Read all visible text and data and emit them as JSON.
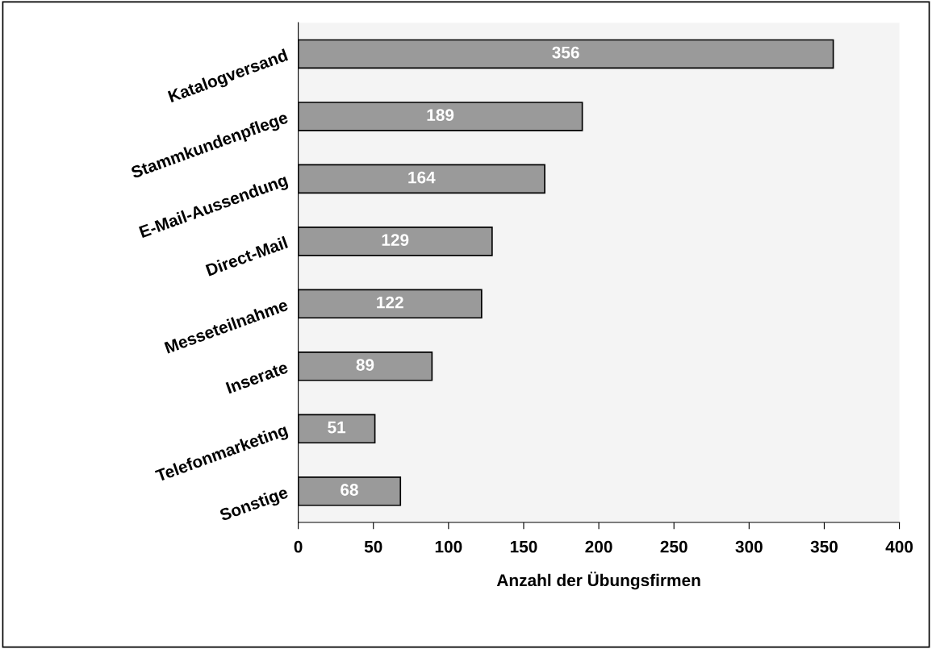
{
  "chart_data": {
    "type": "bar",
    "orientation": "horizontal",
    "categories": [
      "Katalogversand",
      "Stammkundenpflege",
      "E-Mail-Aussendung",
      "Direct-Mail",
      "Messeteilnahme",
      "Inserate",
      "Telefonmarketing",
      "Sonstige"
    ],
    "values": [
      356,
      189,
      164,
      129,
      122,
      89,
      51,
      68
    ],
    "color": "#9a9a9a",
    "xlabel": "Anzahl der Übungsfirmen",
    "xlim": [
      0,
      400
    ],
    "xticks": [
      0,
      50,
      100,
      150,
      200,
      250,
      300,
      350,
      400
    ],
    "data_labels": true,
    "grid": false
  }
}
